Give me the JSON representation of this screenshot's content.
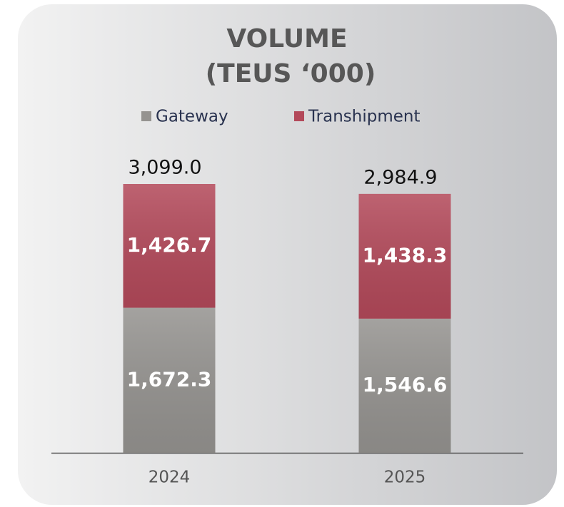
{
  "chart_data": {
    "type": "stacked_bar",
    "title": [
      "VOLUME",
      "(TEUS ‘000)"
    ],
    "categories": [
      "2024",
      "2025"
    ],
    "series": [
      {
        "name": "Gateway",
        "color": "#959390",
        "values": [
          1672.3,
          1546.6
        ],
        "value_labels": [
          "1,672.3",
          "1,546.6"
        ]
      },
      {
        "name": "Transhipment",
        "color": "#b3495a",
        "values": [
          1426.7,
          1438.3
        ],
        "value_labels": [
          "1,426.7",
          "1,438.3"
        ]
      }
    ],
    "totals": [
      3099.0,
      2984.9
    ],
    "total_labels": [
      "3,099.0",
      "2,984.9"
    ]
  }
}
